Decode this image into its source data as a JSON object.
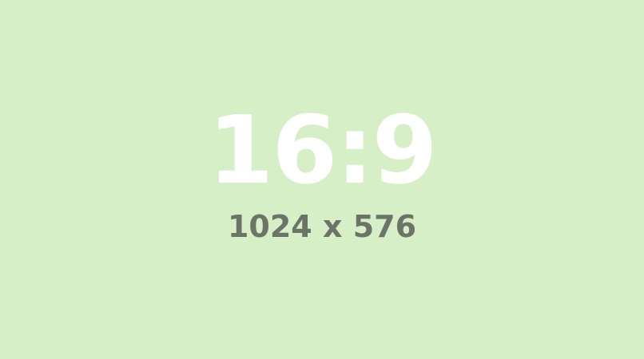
{
  "placeholder": {
    "ratio_text": "16:9",
    "dimensions_text": "1024 x 576",
    "background_color": "#d7efc7",
    "ratio_color": "#ffffff",
    "dimensions_color": "#6b7466"
  }
}
